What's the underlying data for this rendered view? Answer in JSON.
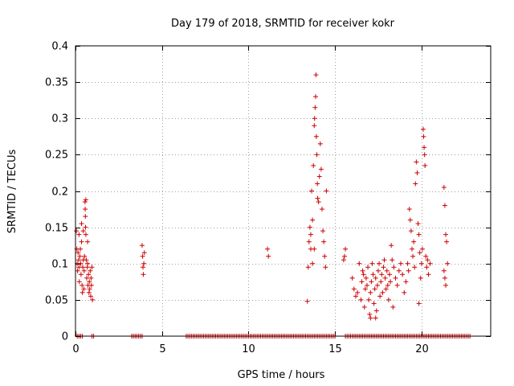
{
  "chart_data": {
    "type": "scatter",
    "title": "Day 179 of 2018, SRMTID for receiver kokr",
    "xlabel": "GPS time / hours",
    "ylabel": "SRMTID / TECUs",
    "xlim": [
      0,
      24
    ],
    "ylim": [
      0,
      0.4
    ],
    "xticks": [
      0,
      5,
      10,
      15,
      20
    ],
    "yticks": [
      0,
      0.05,
      0.1,
      0.15,
      0.2,
      0.25,
      0.3,
      0.35,
      0.4
    ],
    "grid": true,
    "marker": "+",
    "marker_color": "#cc0000",
    "series": [
      {
        "name": "SRMTID",
        "points": [
          [
            0.05,
            0.145
          ],
          [
            0.08,
            0.12
          ],
          [
            0.1,
            0.1
          ],
          [
            0.12,
            0.09
          ],
          [
            0.15,
            0.115
          ],
          [
            0.18,
            0.105
          ],
          [
            0.2,
            0.095
          ],
          [
            0.22,
            0.075
          ],
          [
            0.25,
            0.11
          ],
          [
            0.28,
            0.12
          ],
          [
            0.3,
            0.1
          ],
          [
            0.32,
            0.085
          ],
          [
            0.35,
            0.13
          ],
          [
            0.38,
            0.07
          ],
          [
            0.4,
            0.06
          ],
          [
            0.42,
            0.095
          ],
          [
            0.45,
            0.105
          ],
          [
            0.48,
            0.065
          ],
          [
            0.5,
            0.09
          ],
          [
            0.52,
            0.11
          ],
          [
            0.55,
            0.185
          ],
          [
            0.56,
            0.175
          ],
          [
            0.57,
            0.165
          ],
          [
            0.58,
            0.15
          ],
          [
            0.6,
            0.14
          ],
          [
            0.62,
            0.105
          ],
          [
            0.65,
            0.08
          ],
          [
            0.68,
            0.095
          ],
          [
            0.7,
            0.1
          ],
          [
            0.72,
            0.07
          ],
          [
            0.75,
            0.085
          ],
          [
            0.78,
            0.06
          ],
          [
            0.8,
            0.075
          ],
          [
            0.82,
            0.065
          ],
          [
            0.85,
            0.09
          ],
          [
            0.88,
            0.055
          ],
          [
            0.9,
            0.08
          ],
          [
            0.92,
            0.07
          ],
          [
            0.95,
            0.095
          ],
          [
            0.98,
            0.05
          ],
          [
            0.2,
            0.14
          ],
          [
            0.35,
            0.155
          ],
          [
            0.45,
            0.145
          ],
          [
            0.6,
            0.188
          ],
          [
            0.7,
            0.13
          ],
          [
            3.85,
            0.125
          ],
          [
            3.88,
            0.11
          ],
          [
            3.9,
            0.095
          ],
          [
            3.92,
            0.085
          ],
          [
            3.95,
            0.1
          ],
          [
            3.98,
            0.115
          ],
          [
            11.1,
            0.12
          ],
          [
            11.15,
            0.11
          ],
          [
            13.4,
            0.048
          ],
          [
            13.45,
            0.095
          ],
          [
            13.5,
            0.13
          ],
          [
            13.55,
            0.15
          ],
          [
            13.6,
            0.12
          ],
          [
            13.65,
            0.2
          ],
          [
            13.7,
            0.16
          ],
          [
            13.75,
            0.235
          ],
          [
            13.8,
            0.29
          ],
          [
            13.82,
            0.3
          ],
          [
            13.85,
            0.315
          ],
          [
            13.88,
            0.33
          ],
          [
            13.9,
            0.36
          ],
          [
            13.92,
            0.275
          ],
          [
            13.95,
            0.25
          ],
          [
            13.98,
            0.21
          ],
          [
            14.0,
            0.19
          ],
          [
            14.05,
            0.185
          ],
          [
            14.1,
            0.22
          ],
          [
            14.15,
            0.265
          ],
          [
            14.2,
            0.23
          ],
          [
            14.25,
            0.175
          ],
          [
            14.3,
            0.145
          ],
          [
            14.35,
            0.13
          ],
          [
            14.4,
            0.11
          ],
          [
            14.45,
            0.095
          ],
          [
            14.5,
            0.2
          ],
          [
            13.6,
            0.14
          ],
          [
            13.7,
            0.1
          ],
          [
            13.8,
            0.12
          ],
          [
            15.5,
            0.105
          ],
          [
            15.55,
            0.11
          ],
          [
            15.6,
            0.12
          ],
          [
            16.1,
            0.065
          ],
          [
            16.2,
            0.055
          ],
          [
            16.3,
            0.06
          ],
          [
            16.5,
            0.05
          ],
          [
            16.55,
            0.075
          ],
          [
            16.6,
            0.09
          ],
          [
            16.65,
            0.085
          ],
          [
            16.7,
            0.04
          ],
          [
            16.75,
            0.065
          ],
          [
            16.8,
            0.08
          ],
          [
            16.85,
            0.07
          ],
          [
            16.9,
            0.095
          ],
          [
            16.95,
            0.05
          ],
          [
            17.0,
            0.03
          ],
          [
            17.05,
            0.06
          ],
          [
            17.1,
            0.075
          ],
          [
            17.15,
            0.1
          ],
          [
            17.2,
            0.085
          ],
          [
            17.25,
            0.045
          ],
          [
            17.3,
            0.065
          ],
          [
            17.35,
            0.08
          ],
          [
            17.4,
            0.035
          ],
          [
            17.45,
            0.07
          ],
          [
            17.5,
            0.09
          ],
          [
            17.55,
            0.1
          ],
          [
            17.6,
            0.055
          ],
          [
            17.65,
            0.075
          ],
          [
            17.7,
            0.085
          ],
          [
            17.75,
            0.06
          ],
          [
            17.8,
            0.095
          ],
          [
            17.85,
            0.105
          ],
          [
            17.9,
            0.08
          ],
          [
            17.95,
            0.065
          ],
          [
            18.0,
            0.09
          ],
          [
            18.05,
            0.07
          ],
          [
            18.1,
            0.05
          ],
          [
            18.15,
            0.085
          ],
          [
            18.2,
            0.075
          ],
          [
            18.25,
            0.125
          ],
          [
            18.3,
            0.105
          ],
          [
            18.4,
            0.095
          ],
          [
            18.5,
            0.08
          ],
          [
            18.6,
            0.07
          ],
          [
            18.7,
            0.09
          ],
          [
            18.8,
            0.1
          ],
          [
            18.9,
            0.085
          ],
          [
            19.0,
            0.06
          ],
          [
            19.1,
            0.075
          ],
          [
            19.2,
            0.1
          ],
          [
            19.25,
            0.09
          ],
          [
            19.3,
            0.175
          ],
          [
            19.35,
            0.16
          ],
          [
            19.4,
            0.145
          ],
          [
            19.45,
            0.12
          ],
          [
            19.5,
            0.11
          ],
          [
            19.55,
            0.13
          ],
          [
            19.6,
            0.095
          ],
          [
            19.65,
            0.21
          ],
          [
            19.7,
            0.24
          ],
          [
            19.75,
            0.225
          ],
          [
            19.8,
            0.155
          ],
          [
            19.85,
            0.14
          ],
          [
            19.9,
            0.115
          ],
          [
            19.95,
            0.08
          ],
          [
            20.0,
            0.1
          ],
          [
            20.05,
            0.12
          ],
          [
            20.1,
            0.285
          ],
          [
            20.12,
            0.275
          ],
          [
            20.15,
            0.26
          ],
          [
            20.18,
            0.25
          ],
          [
            20.2,
            0.235
          ],
          [
            20.25,
            0.11
          ],
          [
            20.3,
            0.095
          ],
          [
            20.35,
            0.105
          ],
          [
            20.4,
            0.085
          ],
          [
            21.3,
            0.205
          ],
          [
            21.35,
            0.18
          ],
          [
            21.4,
            0.14
          ],
          [
            21.45,
            0.13
          ],
          [
            21.5,
            0.1
          ],
          [
            21.3,
            0.09
          ],
          [
            21.35,
            0.08
          ],
          [
            21.4,
            0.07
          ],
          [
            16.0,
            0.08
          ],
          [
            16.4,
            0.1
          ],
          [
            17.05,
            0.025
          ],
          [
            17.35,
            0.025
          ],
          [
            18.35,
            0.04
          ],
          [
            19.85,
            0.045
          ],
          [
            20.5,
            0.1
          ]
        ],
        "baseline_zero_segments": [
          [
            0.1,
            0.4
          ],
          [
            0.95,
            1.05
          ],
          [
            3.25,
            3.9
          ],
          [
            6.4,
            15.0
          ],
          [
            15.6,
            22.8
          ]
        ]
      }
    ]
  }
}
